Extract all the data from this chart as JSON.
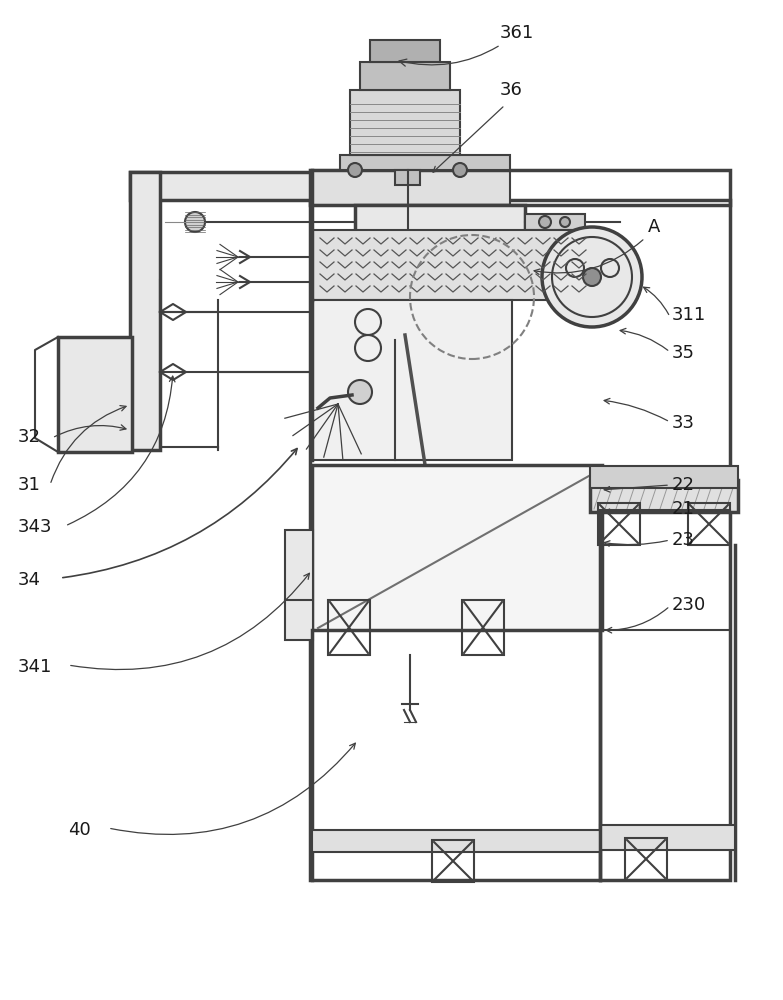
{
  "title": "",
  "bg_color": "#ffffff",
  "line_color": "#404040",
  "label_color": "#1a1a1a",
  "figsize": [
    7.83,
    10.0
  ],
  "dpi": 100,
  "label_fs": 13
}
